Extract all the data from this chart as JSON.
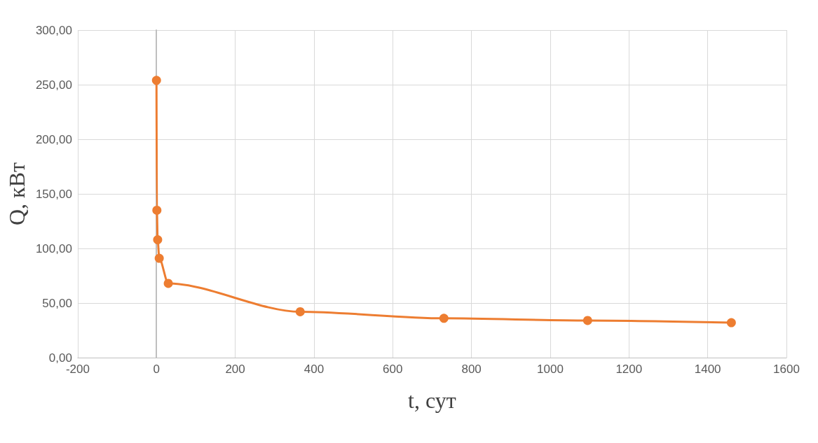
{
  "chart_data": {
    "type": "line",
    "xlabel": "t, сут",
    "ylabel": "Q, кВт",
    "x": [
      0,
      1,
      3,
      7,
      30,
      365,
      730,
      1095,
      1460
    ],
    "series": [
      {
        "color": "#ed7d31",
        "values": [
          254,
          135,
          108,
          91,
          68,
          42,
          36,
          34,
          32
        ]
      }
    ],
    "xlim": [
      -200,
      1600
    ],
    "xticks": [
      -200,
      0,
      200,
      400,
      600,
      800,
      1000,
      1200,
      1400,
      1600
    ],
    "ylim": [
      0,
      300
    ],
    "yticks": [
      {
        "value": 0,
        "label": "0,00"
      },
      {
        "value": 50,
        "label": "50,00"
      },
      {
        "value": 100,
        "label": "100,00"
      },
      {
        "value": 150,
        "label": "150,00"
      },
      {
        "value": 200,
        "label": "200,00"
      },
      {
        "value": 250,
        "label": "250,00"
      },
      {
        "value": 300,
        "label": "300,00"
      }
    ],
    "grid": true,
    "marker": "circle",
    "line_style": "solid"
  }
}
